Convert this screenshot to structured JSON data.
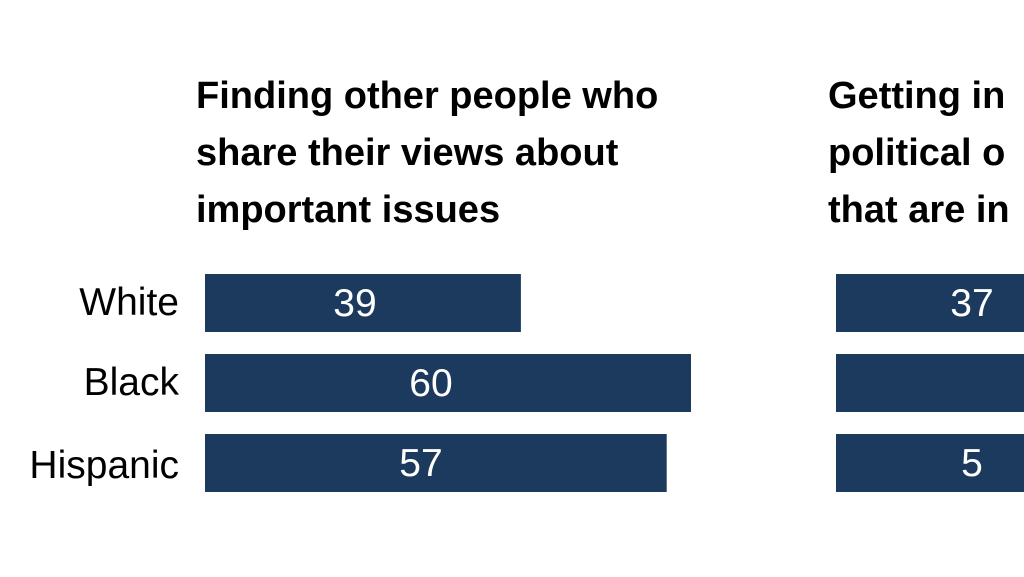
{
  "chart_data": [
    {
      "type": "bar",
      "orientation": "horizontal",
      "title_lines": [
        "Finding other people who",
        "share their views about",
        "important issues"
      ],
      "categories": [
        "White",
        "Black",
        "Hispanic"
      ],
      "values": [
        39,
        60,
        57
      ],
      "value_labels": [
        "39",
        "60",
        "57"
      ],
      "bar_color": "#1b3a5e",
      "xlim": [
        0,
        100
      ]
    },
    {
      "type": "bar",
      "orientation": "horizontal",
      "title_lines": [
        "Getting in",
        "political o",
        "that are in"
      ],
      "categories": [
        "White",
        "Black",
        "Hispanic"
      ],
      "values": [
        37,
        null,
        null
      ],
      "value_labels": [
        "37",
        "",
        "5"
      ],
      "bar_color": "#1b3a5e",
      "xlim": [
        0,
        100
      ]
    }
  ]
}
